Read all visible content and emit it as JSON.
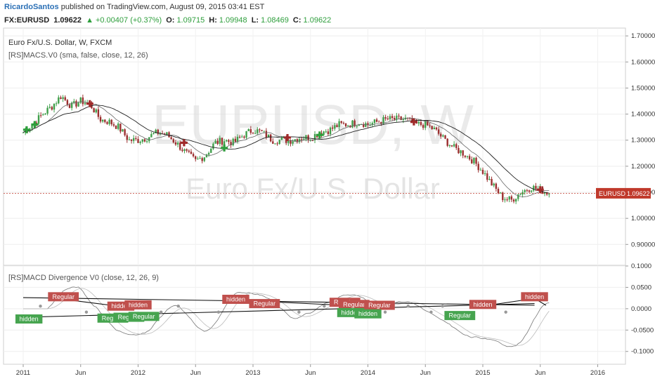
{
  "header": {
    "author": "RicardoSantos",
    "published": "published on TradingView.com, August 09, 2015 03:41 EST"
  },
  "quote": {
    "symbol": "FX:EURUSD",
    "last": "1.09622",
    "change": "+0.00407 (+0.37%)",
    "open_label": "O:",
    "open": "1.09715",
    "high_label": "H:",
    "high": "1.09948",
    "low_label": "L:",
    "low": "1.08469",
    "close_label": "C:",
    "close": "1.09622"
  },
  "main_pane": {
    "title": "Euro Fx/U.S. Dollar, W, FXCM",
    "indicator": "[RS]MACS.V0 (sma, false, close, 12, 26)",
    "watermark_symbol": "EURUSD, W",
    "watermark_name": "Euro Fx/U.S. Dollar",
    "price_tag": "EURUSD",
    "price_tag_value": "1.09622"
  },
  "lower_pane": {
    "indicator": "[RS]MACD Divergence V0 (close, 12, 26, 9)"
  },
  "colors": {
    "up": "#3f9f4a",
    "down": "#9b2f2f",
    "signal_buy": "#2e9e3c",
    "signal_sell": "#a02a2a",
    "price_line": "#c0392b",
    "hidden_green": "#46a44f",
    "hidden_red": "#c0504d"
  },
  "chart_data": [
    {
      "type": "candlestick",
      "title": "Euro Fx/U.S. Dollar, W, FXCM",
      "x_ticks": [
        "2011",
        "Jun",
        "2012",
        "Jun",
        "2013",
        "Jun",
        "2014",
        "Jun",
        "2015",
        "Jun",
        "2016"
      ],
      "y_ticks": [
        "1.70000",
        "1.60000",
        "1.50000",
        "1.40000",
        "1.30000",
        "1.20000",
        "1.10000",
        "1.00000",
        "0.90000"
      ],
      "ylim": [
        0.82,
        1.73
      ],
      "last_price": 1.09622,
      "close_path": [
        [
          2011.0,
          1.33
        ],
        [
          2011.08,
          1.36
        ],
        [
          2011.17,
          1.4
        ],
        [
          2011.25,
          1.43
        ],
        [
          2011.33,
          1.47
        ],
        [
          2011.42,
          1.43
        ],
        [
          2011.5,
          1.45
        ],
        [
          2011.58,
          1.44
        ],
        [
          2011.67,
          1.38
        ],
        [
          2011.75,
          1.37
        ],
        [
          2011.83,
          1.35
        ],
        [
          2011.92,
          1.3
        ],
        [
          2012.0,
          1.3
        ],
        [
          2012.08,
          1.31
        ],
        [
          2012.17,
          1.33
        ],
        [
          2012.25,
          1.32
        ],
        [
          2012.33,
          1.29
        ],
        [
          2012.42,
          1.25
        ],
        [
          2012.5,
          1.22
        ],
        [
          2012.58,
          1.24
        ],
        [
          2012.67,
          1.29
        ],
        [
          2012.75,
          1.3
        ],
        [
          2012.83,
          1.29
        ],
        [
          2012.92,
          1.32
        ],
        [
          2013.0,
          1.34
        ],
        [
          2013.08,
          1.33
        ],
        [
          2013.17,
          1.3
        ],
        [
          2013.25,
          1.3
        ],
        [
          2013.33,
          1.3
        ],
        [
          2013.42,
          1.31
        ],
        [
          2013.5,
          1.31
        ],
        [
          2013.58,
          1.33
        ],
        [
          2013.67,
          1.34
        ],
        [
          2013.75,
          1.36
        ],
        [
          2013.83,
          1.36
        ],
        [
          2013.92,
          1.37
        ],
        [
          2014.0,
          1.36
        ],
        [
          2014.08,
          1.37
        ],
        [
          2014.17,
          1.38
        ],
        [
          2014.25,
          1.38
        ],
        [
          2014.33,
          1.38
        ],
        [
          2014.42,
          1.36
        ],
        [
          2014.5,
          1.36
        ],
        [
          2014.58,
          1.34
        ],
        [
          2014.67,
          1.3
        ],
        [
          2014.75,
          1.27
        ],
        [
          2014.83,
          1.25
        ],
        [
          2014.92,
          1.22
        ],
        [
          2015.0,
          1.18
        ],
        [
          2015.08,
          1.13
        ],
        [
          2015.17,
          1.08
        ],
        [
          2015.25,
          1.07
        ],
        [
          2015.33,
          1.1
        ],
        [
          2015.42,
          1.12
        ],
        [
          2015.5,
          1.11
        ],
        [
          2015.58,
          1.096
        ]
      ],
      "buy_signals": [
        [
          2011.03,
          1.34
        ],
        [
          2011.1,
          1.36
        ],
        [
          2012.75,
          1.27
        ],
        [
          2013.58,
          1.32
        ]
      ],
      "sell_signals": [
        [
          2011.58,
          1.44
        ],
        [
          2012.4,
          1.29
        ],
        [
          2013.3,
          1.31
        ],
        [
          2014.4,
          1.37
        ],
        [
          2015.5,
          1.11
        ]
      ]
    },
    {
      "type": "line",
      "title": "[RS]MACD Divergence V0 (close, 12, 26, 9)",
      "y_ticks": [
        "0.1000",
        "0.0500",
        "0.0000",
        "-0.0500",
        "-0.1000"
      ],
      "ylim": [
        -0.13,
        0.1
      ],
      "labels": [
        {
          "text": "Regular",
          "x": 2011.35,
          "y": 0.028,
          "color": "red"
        },
        {
          "text": "hidden",
          "x": 2011.05,
          "y": -0.024,
          "color": "green"
        },
        {
          "text": "hidden",
          "x": 2011.85,
          "y": 0.006,
          "color": "red"
        },
        {
          "text": "hidden",
          "x": 2012.0,
          "y": 0.009,
          "color": "red"
        },
        {
          "text": "Regular",
          "x": 2011.78,
          "y": -0.022,
          "color": "green"
        },
        {
          "text": "Regular",
          "x": 2011.92,
          "y": -0.02,
          "color": "green"
        },
        {
          "text": "Regular",
          "x": 2012.05,
          "y": -0.018,
          "color": "green"
        },
        {
          "text": "hidden",
          "x": 2012.85,
          "y": 0.022,
          "color": "red"
        },
        {
          "text": "Regular",
          "x": 2013.1,
          "y": 0.012,
          "color": "red"
        },
        {
          "text": "Regular",
          "x": 2013.8,
          "y": 0.015,
          "color": "red"
        },
        {
          "text": "Regular",
          "x": 2013.88,
          "y": 0.01,
          "color": "red"
        },
        {
          "text": "Regular",
          "x": 2014.1,
          "y": 0.008,
          "color": "red"
        },
        {
          "text": "hidden",
          "x": 2013.85,
          "y": -0.009,
          "color": "green"
        },
        {
          "text": "hidden",
          "x": 2014.0,
          "y": -0.012,
          "color": "green"
        },
        {
          "text": "hidden",
          "x": 2015.0,
          "y": 0.01,
          "color": "red"
        },
        {
          "text": "Regular",
          "x": 2014.8,
          "y": -0.016,
          "color": "green"
        },
        {
          "text": "hidden",
          "x": 2015.45,
          "y": 0.028,
          "color": "red"
        }
      ]
    }
  ]
}
